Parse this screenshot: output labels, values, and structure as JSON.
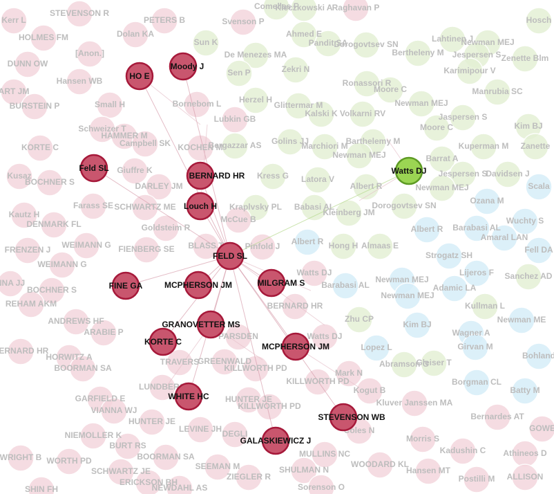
{
  "highlighted_nodes": [
    "HO E",
    "Moody J",
    "Feld SL",
    "BERNARD HR",
    "Louch H",
    "FELD SL",
    "FINE GA",
    "MCPHERSON JM",
    "MILGRAM S",
    "GRANOVETTER MS",
    "KORTE C",
    "MCPHERSON JM",
    "WHITE HC",
    "STEVENSON WB",
    "GALASKIEWICZ J",
    "Watts DJ"
  ],
  "background_nodes": [
    "STEVENSON R",
    "PETERS B",
    "Svenson P",
    "HOLMES FM",
    "Dolan KA",
    "Ahmed E",
    "Newman MEJ",
    "DUNN OW",
    "[Anon.]",
    "Sun K",
    "De Menezes MA",
    "Pandit SA",
    "Dorogovtsev SN",
    "Lahtinen J",
    "Bertheleny M",
    "Jespersen S",
    "Zenette Blm",
    "Hansen WB",
    "Sen P",
    "Zekri N",
    "Karimipour V",
    "Ronassori R",
    "Moore C",
    "Manrubia SC",
    "ART JM",
    "BURSTEIN P",
    "Small H",
    "Bornebom L",
    "Herzel H",
    "Glittermar M",
    "Newman MEJ",
    "Kalski K",
    "Volkarni RV",
    "Lubkin GB",
    "Jaspersen S",
    "Kim BJ",
    "Schweizer T",
    "HAMMER M",
    "Moore C",
    "KORTE C",
    "Campbell SK",
    "KOCHEN M",
    "Golins JJ",
    "Marchiori M",
    "Barthelemy M",
    "Kuperman M",
    "Zanette",
    "Bergazzar AS",
    "Newman MEJ",
    "Barrat A",
    "Kusaz",
    "Giuffre K",
    "Jespersen S",
    "Davidsen J",
    "Scala",
    "BOCHNER S",
    "DARLEY JM",
    "Kress G",
    "Latora V",
    "Albert R",
    "Newman MEJ",
    "Ozana M",
    "Farass SE",
    "SCHWARTZ ME",
    "Kraplvsky PL",
    "Babasi AL",
    "Dorogovtsev SN",
    "Kautz H",
    "McCue B",
    "Kleinberg JM",
    "Wuchty S",
    "DENMARK FL",
    "Goldsteim R",
    "Albert R",
    "Barabasi AL",
    "Amaral LAN",
    "BLASS T",
    "Pinfold J",
    "Albert R",
    "Hong H",
    "Almaas E",
    "Fell DA",
    "FRENZEN J",
    "WEIMANN G",
    "FIENBERG SE",
    "Strogatz SH",
    "WEIMANN G",
    "Watts DJ",
    "Lijeros F",
    "Sanchez AD",
    "NNA JJ",
    "BOCHNER S",
    "Newman MEJ",
    "Barabasi AL",
    "Newman MEJ",
    "Adamic LA",
    "BERNARD HR",
    "Kullman L",
    "Newman ME",
    "REHAM AKM",
    "ANDREWS HF",
    "Zhu CP",
    "Kim BJ",
    "Wagner A",
    "ARABIE P",
    "PARSDEN",
    "Watts DJ",
    "Lopez L",
    "Girvan M",
    "BERNARD HR",
    "HORWITZ A",
    "TRAVERS",
    "GREENWALD",
    "Bohland",
    "BOORMAN SA",
    "KILLWORTH PD",
    "Abramson G",
    "Gleiser T",
    "Mark N",
    "LUNDBERG",
    "KILLWORTH PD",
    "Borgman CL",
    "Batty M",
    "Kogut B",
    "GARFIELD E",
    "HUNTER JE",
    "KILLWORTH PD",
    "VIANNA WJ",
    "Kluver Janssen MA",
    "Bernardes AT",
    "GOWE",
    "NIEMOLLER K",
    "HUNTER JE",
    "LEVINE JH",
    "Coles N",
    "BURT RS",
    "DEGLI",
    "Morris S",
    "BOORMAN SA",
    "MULLINS NC",
    "Kadushin C",
    "Athineos D",
    "WRIGHT B",
    "WORTH PD",
    "SCHWARTZ JE",
    "SEEMAN M",
    "WOODARD KL",
    "Hansen MT",
    "ERICKSON BH",
    "ZIEGLER R",
    "SHULMAN N",
    "Postilli M",
    "ALLISON",
    "SHIN FH",
    "NEWDAHL AS",
    "Sorenson O",
    "Hosch",
    "Kerr L",
    "Kleczkowski A",
    "Raghavan P",
    "Comellas F"
  ]
}
